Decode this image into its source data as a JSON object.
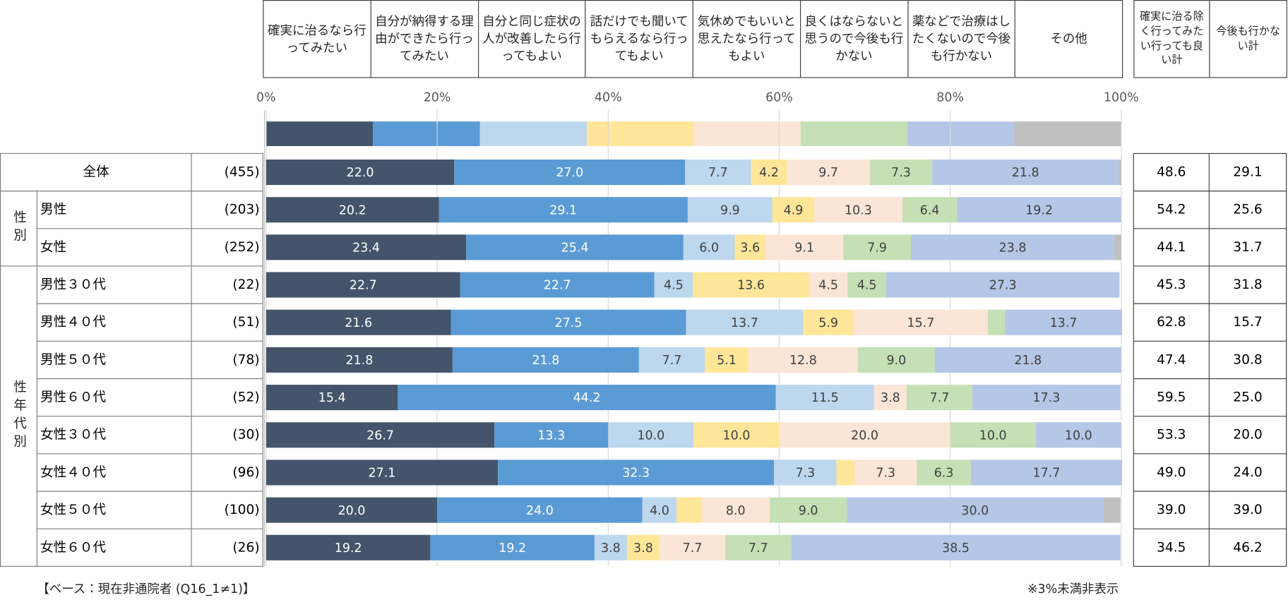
{
  "chart_data": {
    "type": "bar",
    "stacked": true,
    "horizontal": true,
    "categories": [
      "全体",
      "男性",
      "女性",
      "男性３０代",
      "男性４０代",
      "男性５０代",
      "男性６０代",
      "女性３０代",
      "女性４０代",
      "女性５０代",
      "女性６０代"
    ],
    "category_groups": [
      "性別",
      "性年代別"
    ],
    "sample_sizes": [
      "(455)",
      "(203)",
      "(252)",
      "(22)",
      "(51)",
      "(78)",
      "(52)",
      "(30)",
      "(96)",
      "(100)",
      "(26)"
    ],
    "xlim": [
      0,
      100
    ],
    "xticks": [
      {
        "value": 0,
        "label": "0%"
      },
      {
        "value": 20,
        "label": "20%"
      },
      {
        "value": 40,
        "label": "40%"
      },
      {
        "value": 60,
        "label": "60%"
      },
      {
        "value": 80,
        "label": "80%"
      },
      {
        "value": 100,
        "label": "100%"
      }
    ],
    "grid": true,
    "series": [
      {
        "name": "確実に治るなら行ってみたい",
        "color": "#44546a",
        "values": [
          22.0,
          20.2,
          23.4,
          22.7,
          21.6,
          21.8,
          15.4,
          26.7,
          27.1,
          20.0,
          19.2
        ],
        "value_labels": [
          "22.0",
          "20.2",
          "23.4",
          "22.7",
          "21.6",
          "21.8",
          "15.4",
          "26.7",
          "27.1",
          "20.0",
          "19.2"
        ]
      },
      {
        "name": "自分が納得する理由ができたら行ってみたい",
        "color": "#5b9bd5",
        "values": [
          27.0,
          29.1,
          25.4,
          22.7,
          27.5,
          21.8,
          44.2,
          13.3,
          32.3,
          24.0,
          19.2
        ],
        "value_labels": [
          "27.0",
          "29.1",
          "25.4",
          "22.7",
          "27.5",
          "21.8",
          "44.2",
          "13.3",
          "32.3",
          "24.0",
          "19.2"
        ]
      },
      {
        "name": "自分と同じ症状の人が改善したら行ってもよい",
        "color": "#bdd7ee",
        "values": [
          7.7,
          9.9,
          6.0,
          4.5,
          13.7,
          7.7,
          11.5,
          10.0,
          7.3,
          4.0,
          3.8
        ],
        "value_labels": [
          "7.7",
          "9.9",
          "6.0",
          "4.5",
          "13.7",
          "7.7",
          "11.5",
          "10.0",
          "7.3",
          "4.0",
          "3.8"
        ]
      },
      {
        "name": "話だけでも聞いてもらえるなら行ってもよい",
        "color": "#ffe699",
        "values": [
          4.2,
          4.9,
          3.6,
          13.6,
          5.9,
          5.1,
          0,
          10.0,
          2.1,
          2.9,
          3.8
        ],
        "value_labels": [
          "4.2",
          "4.9",
          "3.6",
          "13.6",
          "5.9",
          "5.1",
          null,
          "10.0",
          null,
          null,
          "3.8"
        ]
      },
      {
        "name": "気休めでもいいと思えたなら行ってもよい",
        "color": "#fbe5d6",
        "values": [
          9.7,
          10.3,
          9.1,
          4.5,
          15.7,
          12.8,
          3.8,
          20.0,
          7.3,
          8.0,
          7.7
        ],
        "value_labels": [
          "9.7",
          "10.3",
          "9.1",
          "4.5",
          "15.7",
          "12.8",
          "3.8",
          "20.0",
          "7.3",
          "8.0",
          "7.7"
        ]
      },
      {
        "name": "良くはならないと思うので今後も行かない",
        "color": "#c5e0b4",
        "values": [
          7.3,
          6.4,
          7.9,
          4.5,
          2.0,
          9.0,
          7.7,
          10.0,
          6.3,
          9.0,
          7.7
        ],
        "value_labels": [
          "7.3",
          "6.4",
          "7.9",
          "4.5",
          null,
          "9.0",
          "7.7",
          "10.0",
          "6.3",
          "9.0",
          "7.7"
        ]
      },
      {
        "name": "薬などで治療はしたくないので今後も行かない",
        "color": "#b4c7e7",
        "values": [
          21.8,
          19.2,
          23.8,
          27.3,
          13.7,
          21.8,
          17.3,
          10.0,
          17.7,
          30.0,
          38.5
        ],
        "value_labels": [
          "21.8",
          "19.2",
          "23.8",
          "27.3",
          "13.7",
          "21.8",
          "17.3",
          "10.0",
          "17.7",
          "30.0",
          "38.5"
        ]
      },
      {
        "name": "その他",
        "color": "#bfbfbf",
        "values": [
          0.3,
          0,
          0.8,
          0,
          0,
          0,
          0,
          0,
          0,
          2.0,
          0
        ],
        "value_labels": [
          null,
          null,
          null,
          null,
          null,
          null,
          null,
          null,
          null,
          null,
          null
        ]
      }
    ],
    "summary_columns": [
      {
        "name": "確実に治る除く行ってみたい行っても良い計",
        "values": [
          "48.6",
          "54.2",
          "44.1",
          "45.3",
          "62.8",
          "47.4",
          "59.5",
          "53.3",
          "49.0",
          "39.0",
          "34.5"
        ]
      },
      {
        "name": "今後も行かない計",
        "values": [
          "29.1",
          "25.6",
          "31.7",
          "31.8",
          "15.7",
          "30.8",
          "25.0",
          "20.0",
          "24.0",
          "39.0",
          "46.2"
        ]
      }
    ],
    "note": "【ベース：現在非通院者 (Q16_1≠1)】",
    "footnote": "※3%未満非表示"
  }
}
